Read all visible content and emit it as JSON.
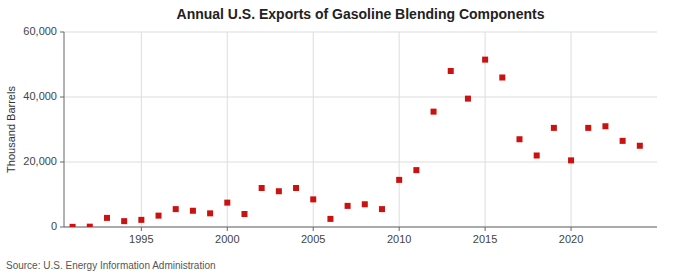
{
  "chart_data": {
    "type": "scatter",
    "title": "Annual U.S. Exports of Gasoline Blending Components",
    "y_label": "Thousand Barrels",
    "annotations": [
      "Source: U.S. Energy Information Administration"
    ],
    "x": [
      1991,
      1992,
      1993,
      1994,
      1995,
      1996,
      1997,
      1998,
      1999,
      2000,
      2001,
      2002,
      2003,
      2004,
      2005,
      2006,
      2007,
      2008,
      2009,
      2010,
      2011,
      2012,
      2013,
      2014,
      2015,
      2016,
      2017,
      2018,
      2019,
      2020,
      2021,
      2022,
      2023,
      2024
    ],
    "values": [
      50,
      100,
      2800,
      1800,
      2200,
      3500,
      5500,
      5000,
      4200,
      7500,
      4000,
      12000,
      11000,
      12000,
      8500,
      2500,
      6500,
      7000,
      5500,
      14500,
      17500,
      35500,
      48000,
      39500,
      51500,
      46000,
      27000,
      22000,
      30500,
      20500,
      30500,
      31000,
      26500,
      25000
    ],
    "color": "#cc1111",
    "marker": "square",
    "xlim": [
      1990.5,
      2025
    ],
    "xticks": [
      1995,
      2000,
      2005,
      2010,
      2015,
      2020
    ],
    "ylim": [
      0,
      60000
    ],
    "yticks": [
      0,
      {
        "value": 20000,
        "label": "20,000"
      },
      {
        "value": 40000,
        "label": "40,000"
      },
      {
        "value": 60000,
        "label": "60,000"
      }
    ],
    "grid": true
  }
}
